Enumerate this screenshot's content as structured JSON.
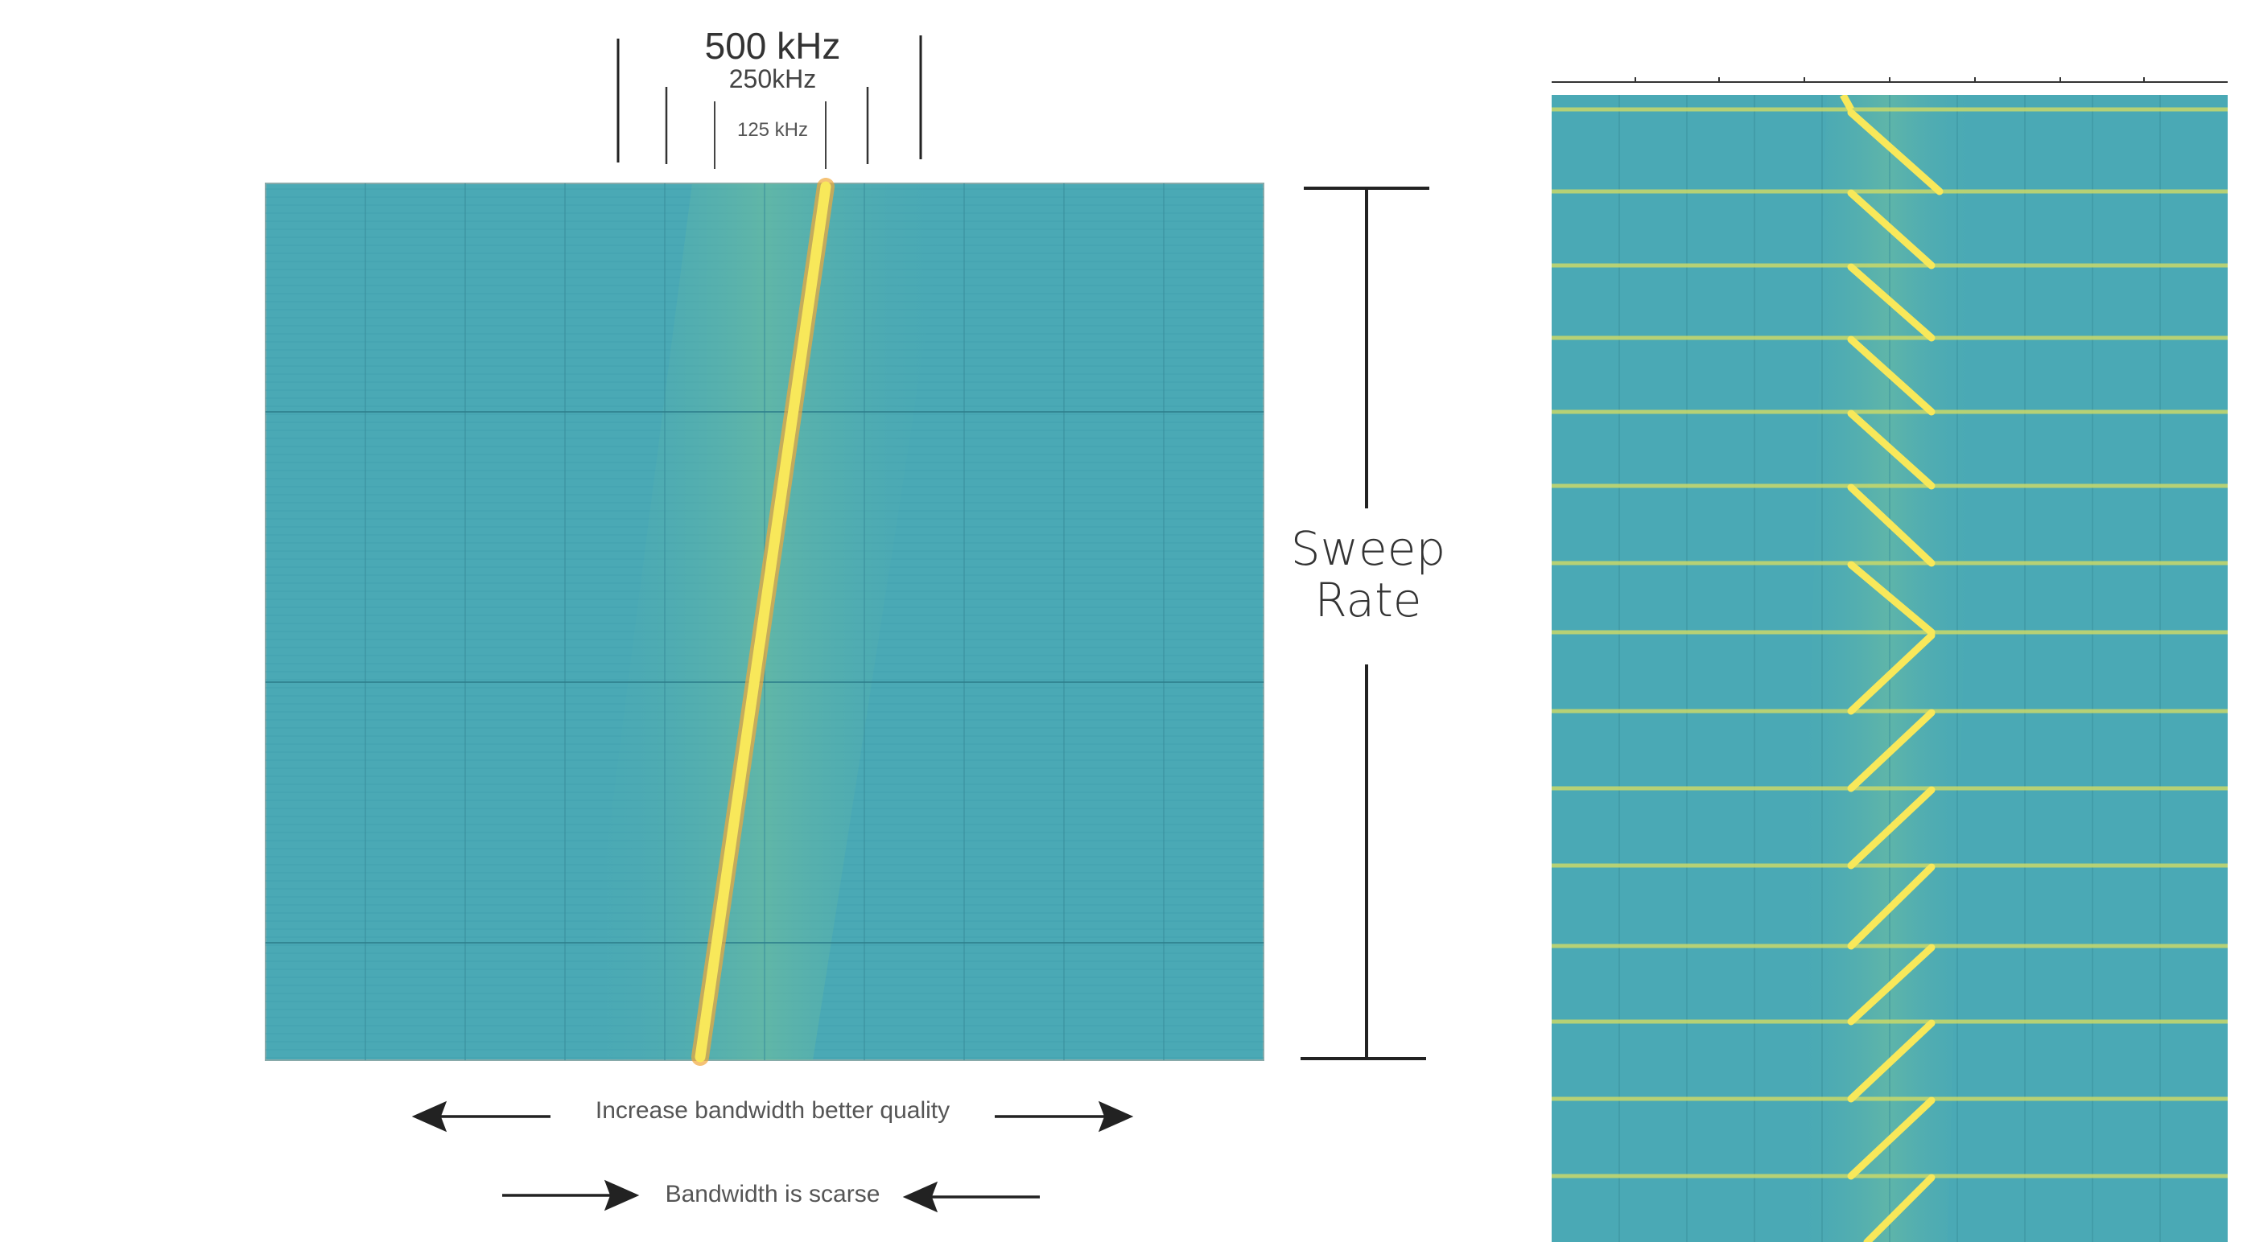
{
  "bandwidth_markers": {
    "wide": "500 kHz",
    "mid": "250kHz",
    "narrow": "125 kHz"
  },
  "sweep_rate_label": {
    "line1": "Sweep",
    "line2": "Rate"
  },
  "captions": {
    "increase_bandwidth": "Increase bandwidth better quality",
    "bandwidth_scarce": "Bandwidth is scarse"
  },
  "colors": {
    "background": "#4aa9b5",
    "band": "#6fbe9c",
    "chirp": "#f8e85a",
    "chirp_edge": "#f2a93b",
    "ink": "#222222"
  }
}
